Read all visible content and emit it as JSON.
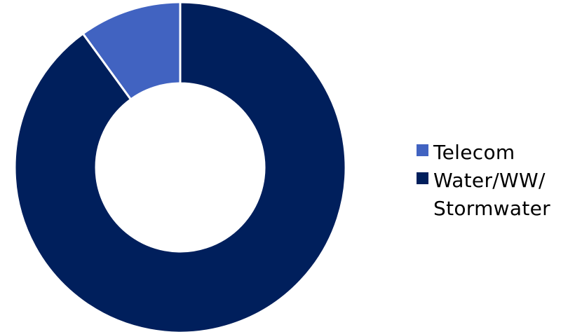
{
  "chart_data": {
    "type": "pie",
    "variant": "donut",
    "title": "",
    "slices": [
      {
        "label": "Telecom",
        "value": 10,
        "color": "#4163C1"
      },
      {
        "label": "Water/WW/ Stormwater",
        "value": 90,
        "color": "#001F5C"
      }
    ],
    "legend": {
      "position": "right",
      "items": [
        {
          "label": "Telecom",
          "color": "#4163C1"
        },
        {
          "label": "Water/WW/ Stormwater",
          "color": "#001F5C"
        }
      ]
    }
  }
}
